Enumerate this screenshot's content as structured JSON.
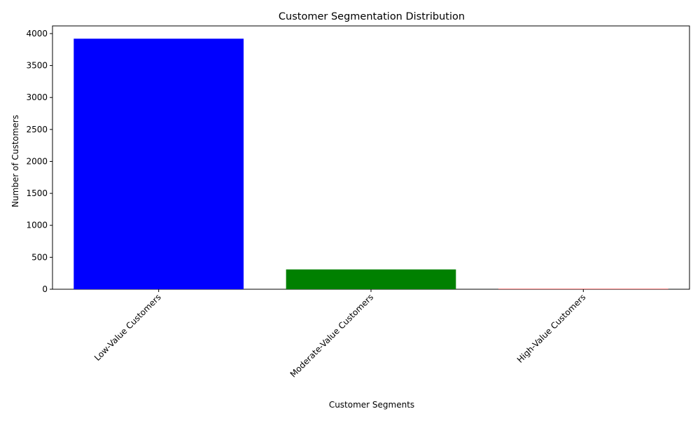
{
  "chart_data": {
    "type": "bar",
    "title": "Customer Segmentation Distribution",
    "xlabel": "Customer Segments",
    "ylabel": "Number of Customers",
    "categories": [
      "Low-Value Customers",
      "Moderate-Value Customers",
      "High-Value Customers"
    ],
    "values": [
      3920,
      310,
      5
    ],
    "colors": [
      "#0000ff",
      "#008000",
      "#ff0000"
    ],
    "ylim": [
      0,
      4120
    ],
    "yticks": [
      0,
      500,
      1000,
      1500,
      2000,
      2500,
      3000,
      3500,
      4000
    ],
    "ytick_labels": [
      "0",
      "500",
      "1000",
      "1500",
      "2000",
      "2500",
      "3000",
      "3500",
      "4000"
    ],
    "xtick_rotation": 45,
    "grid": false,
    "legend": "none"
  }
}
